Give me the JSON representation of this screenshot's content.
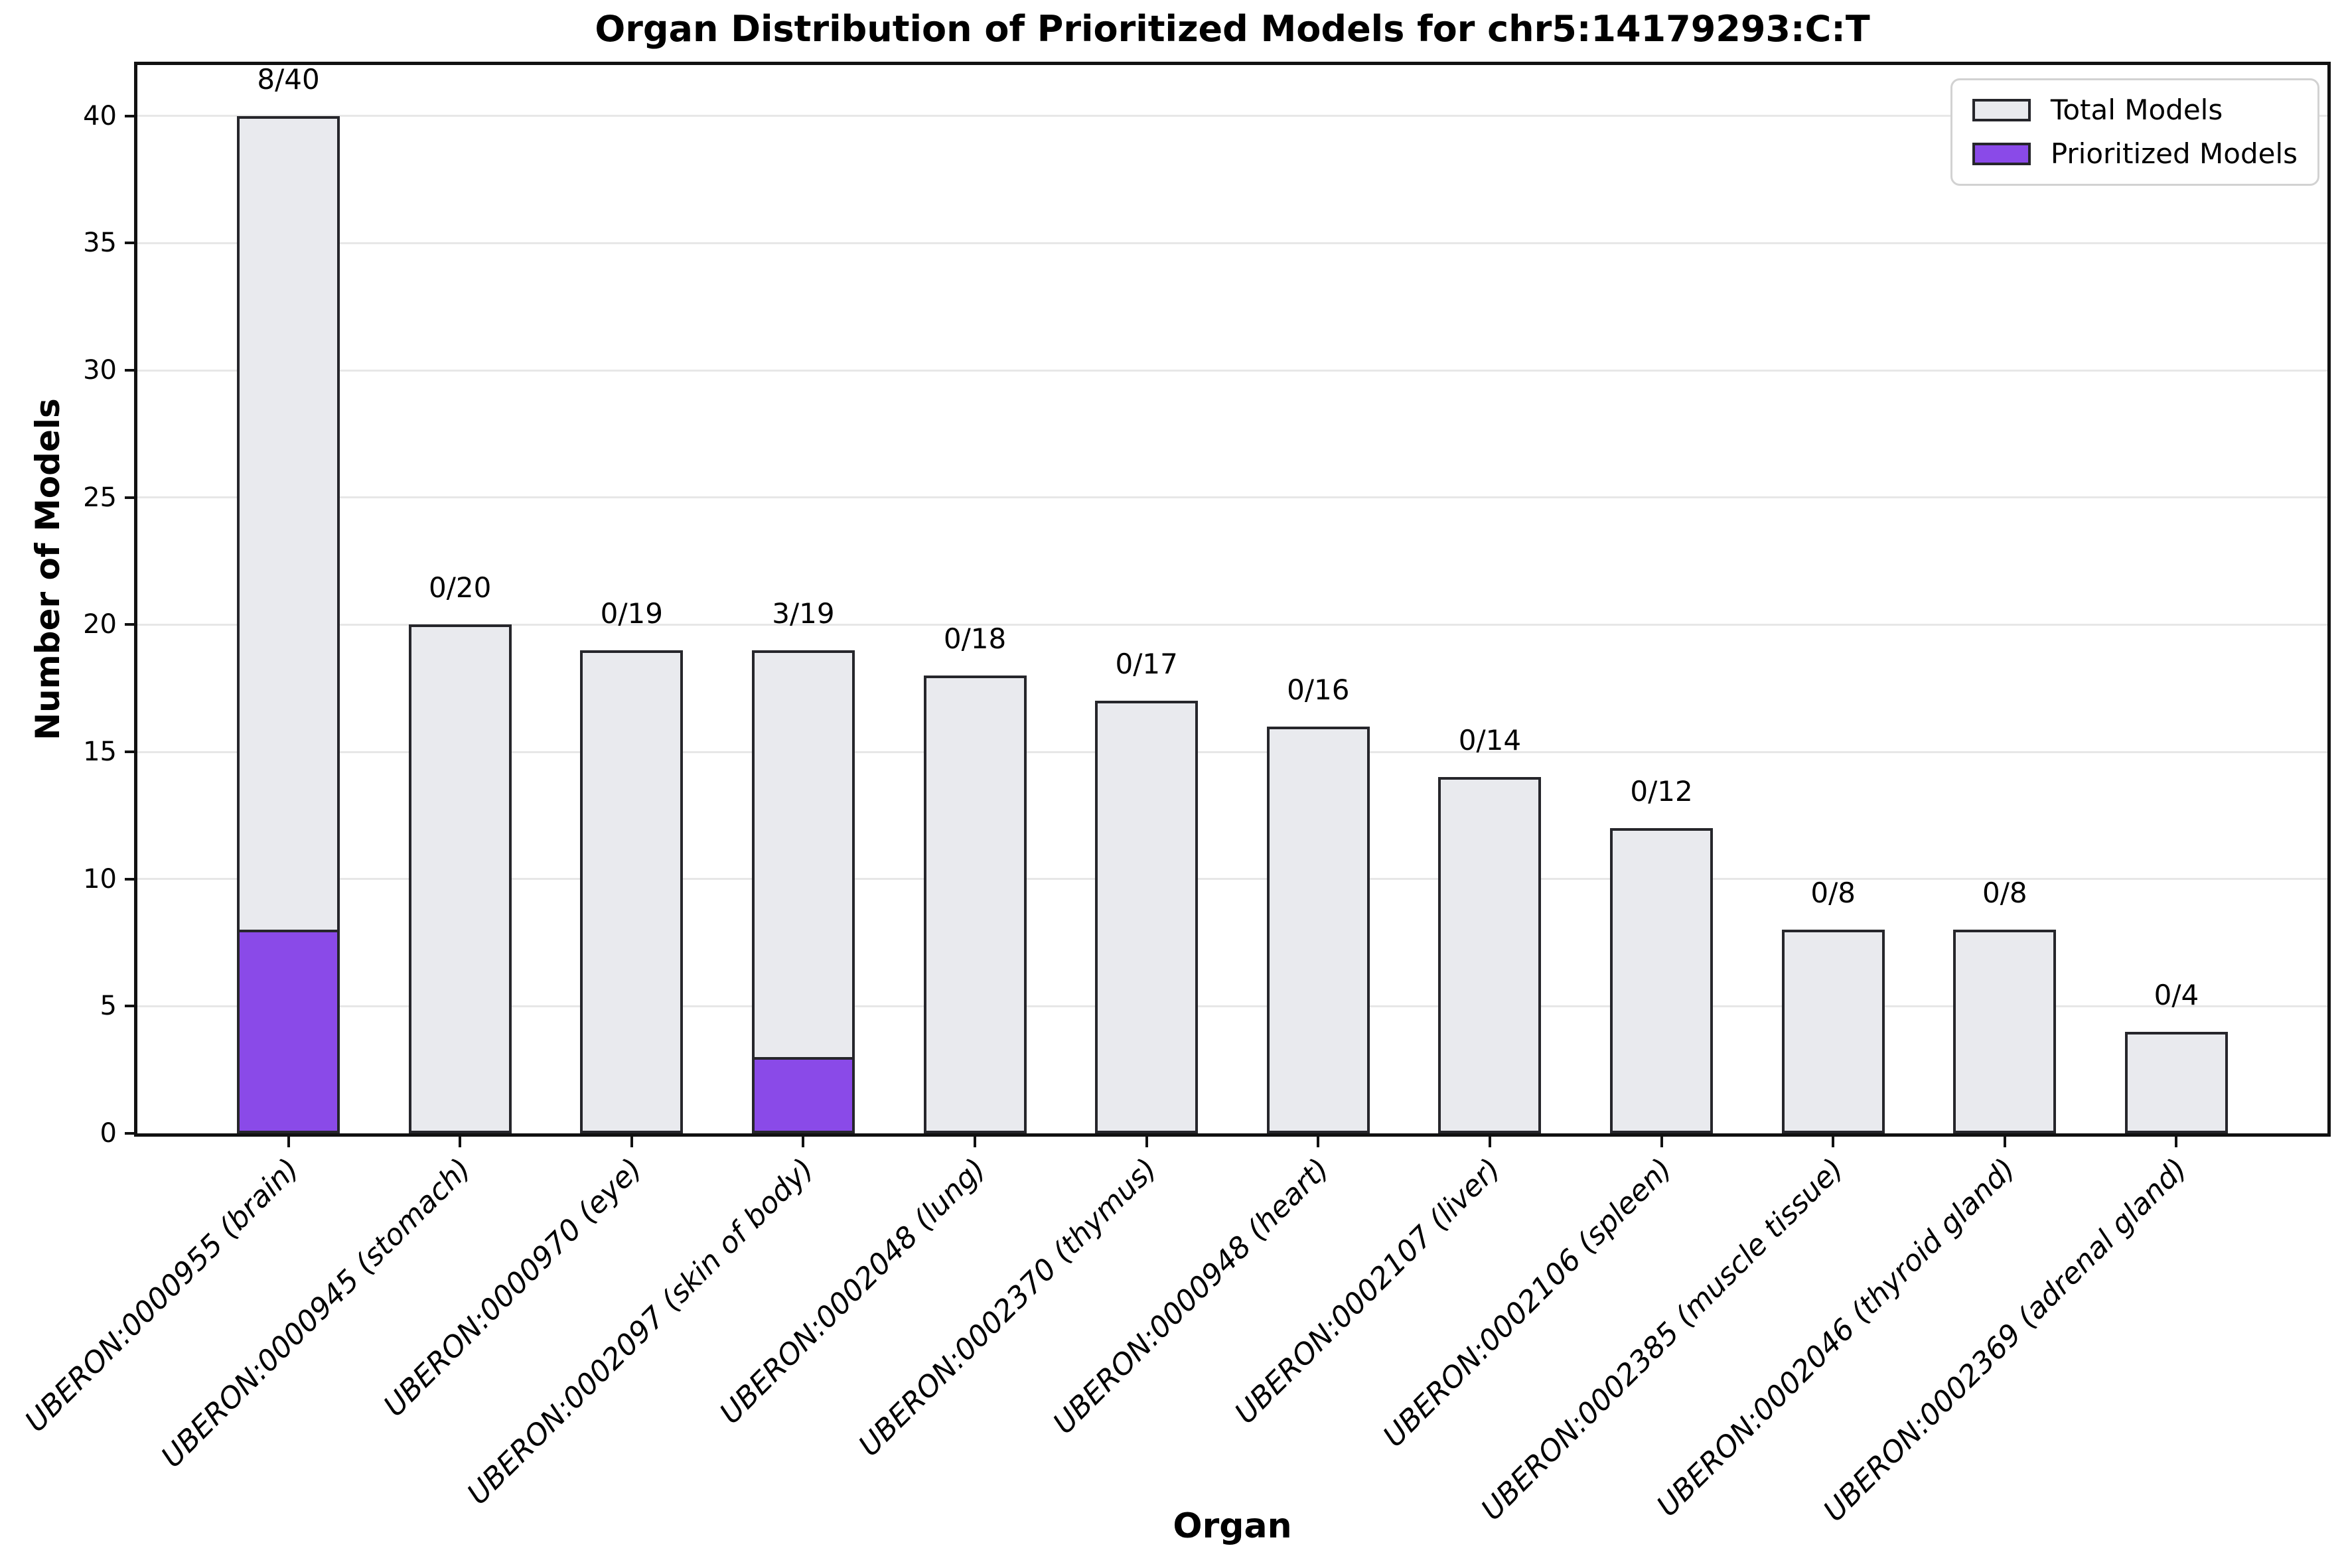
{
  "title": "Organ Distribution of Prioritized Models for chr5:14179293:C:T",
  "x_axis": {
    "label": "Organ"
  },
  "y_axis": {
    "label": "Number of Models",
    "ticks": [
      0,
      5,
      10,
      15,
      20,
      25,
      30,
      35,
      40
    ]
  },
  "legend": {
    "items": [
      {
        "label": "Total Models",
        "color": "#e9eaee"
      },
      {
        "label": "Prioritized Models",
        "color": "#8a4ae8"
      }
    ]
  },
  "colors": {
    "total_fill": "#e9eaee",
    "prioritized_fill": "#8a4ae8",
    "bar_edge": "#26262b",
    "grid": "#e7e7e7",
    "spine": "#111111",
    "background": "#ffffff"
  },
  "chart_data": {
    "type": "bar",
    "title": "Organ Distribution of Prioritized Models for chr5:14179293:C:T",
    "xlabel": "Organ",
    "ylabel": "Number of Models",
    "ylim": [
      0,
      42
    ],
    "yticks": [
      0,
      5,
      10,
      15,
      20,
      25,
      30,
      35,
      40
    ],
    "grid": true,
    "legend_position": "upper right",
    "categories": [
      "UBERON:0000955 (brain)",
      "UBERON:0000945 (stomach)",
      "UBERON:0000970 (eye)",
      "UBERON:0002097 (skin of body)",
      "UBERON:0002048 (lung)",
      "UBERON:0002370 (thymus)",
      "UBERON:0000948 (heart)",
      "UBERON:0002107 (liver)",
      "UBERON:0002106 (spleen)",
      "UBERON:0002385 (muscle tissue)",
      "UBERON:0002046 (thyroid gland)",
      "UBERON:0002369 (adrenal gland)"
    ],
    "series": [
      {
        "name": "Total Models",
        "color": "#e9eaee",
        "values": [
          40,
          20,
          19,
          19,
          18,
          17,
          16,
          14,
          12,
          8,
          8,
          4
        ]
      },
      {
        "name": "Prioritized Models",
        "color": "#8a4ae8",
        "values": [
          8,
          0,
          0,
          3,
          0,
          0,
          0,
          0,
          0,
          0,
          0,
          0
        ]
      }
    ],
    "bar_labels": [
      "8/40",
      "0/20",
      "0/19",
      "3/19",
      "0/18",
      "0/17",
      "0/16",
      "0/14",
      "0/12",
      "0/8",
      "0/8",
      "0/4"
    ]
  }
}
